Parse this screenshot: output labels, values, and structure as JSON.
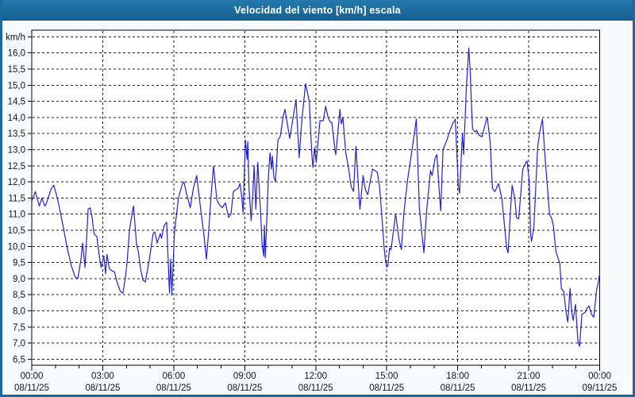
{
  "window": {
    "title": "Velocidad del viento [km/h] escala"
  },
  "colors": {
    "titlebar_top": "#2478ad",
    "titlebar_bottom": "#15608f",
    "frame": "#1a6aa0",
    "page_bg": "#f7fbfe",
    "plot_bg": "#ffffff",
    "grid": "#222222",
    "axis": "#000000",
    "line": "#2222cc",
    "label": "#10151f"
  },
  "y_axis": {
    "unit_label": "km/h",
    "min": 6.5,
    "max": 16.5,
    "step": 0.5,
    "labels": [
      "16,0",
      "15,5",
      "15,0",
      "14,5",
      "14,0",
      "13,5",
      "13,0",
      "12,5",
      "12,0",
      "11,5",
      "11,0",
      "10,5",
      "10,0",
      "9,5",
      "9,0",
      "8,5",
      "8,0",
      "7,5",
      "7,0",
      "6,5"
    ]
  },
  "x_axis": {
    "tick_hours": [
      0,
      3,
      6,
      9,
      12,
      15,
      18,
      21,
      24
    ],
    "minor_step_hours": 1,
    "labels": [
      {
        "time": "00:00",
        "date": "08/11/25"
      },
      {
        "time": "03:00",
        "date": "08/11/25"
      },
      {
        "time": "06:00",
        "date": "08/11/25"
      },
      {
        "time": "09:00",
        "date": "08/11/25"
      },
      {
        "time": "12:00",
        "date": "08/11/25"
      },
      {
        "time": "15:00",
        "date": "08/11/25"
      },
      {
        "time": "18:00",
        "date": "08/11/25"
      },
      {
        "time": "21:00",
        "date": "08/11/25"
      },
      {
        "time": "00:00",
        "date": "09/11/25"
      }
    ]
  },
  "chart_data": {
    "type": "line",
    "title": "Velocidad del viento [km/h] escala",
    "xlabel": "",
    "ylabel": "km/h",
    "x_unit": "hours since 00:00 08/11/25",
    "x_range": [
      0,
      24
    ],
    "y_range": [
      6.5,
      16.5
    ],
    "y_tick_step": 0.5,
    "grid": true,
    "legend_position": "none",
    "series": [
      {
        "name": "Velocidad del viento [km/h]",
        "color": "#2222cc",
        "points": [
          [
            0,
            11.4
          ],
          [
            0.15,
            11.7
          ],
          [
            0.32,
            11.25
          ],
          [
            0.43,
            11.5
          ],
          [
            0.55,
            11.25
          ],
          [
            0.6,
            11.3
          ],
          [
            0.83,
            11.8
          ],
          [
            0.93,
            11.9
          ],
          [
            1.08,
            11.5
          ],
          [
            1.17,
            11.2
          ],
          [
            1.33,
            10.6
          ],
          [
            1.5,
            9.95
          ],
          [
            1.67,
            9.4
          ],
          [
            1.83,
            9.05
          ],
          [
            1.95,
            9.0
          ],
          [
            2.08,
            9.6
          ],
          [
            2.15,
            10.1
          ],
          [
            2.25,
            9.35
          ],
          [
            2.33,
            10.4
          ],
          [
            2.38,
            11.15
          ],
          [
            2.47,
            11.2
          ],
          [
            2.55,
            10.9
          ],
          [
            2.63,
            10.4
          ],
          [
            2.75,
            10.3
          ],
          [
            2.87,
            9.6
          ],
          [
            2.93,
            9.35
          ],
          [
            3.05,
            9.7
          ],
          [
            3.12,
            9.15
          ],
          [
            3.18,
            9.75
          ],
          [
            3.28,
            9.3
          ],
          [
            3.38,
            9.25
          ],
          [
            3.5,
            9.2
          ],
          [
            3.62,
            8.85
          ],
          [
            3.75,
            8.6
          ],
          [
            3.85,
            8.55
          ],
          [
            3.95,
            9.0
          ],
          [
            4.03,
            9.5
          ],
          [
            4.13,
            10.5
          ],
          [
            4.27,
            11.15
          ],
          [
            4.3,
            11.25
          ],
          [
            4.43,
            10.05
          ],
          [
            4.5,
            9.85
          ],
          [
            4.6,
            9.3
          ],
          [
            4.7,
            8.95
          ],
          [
            4.8,
            8.9
          ],
          [
            4.97,
            9.6
          ],
          [
            5.13,
            10.4
          ],
          [
            5.2,
            10.45
          ],
          [
            5.3,
            10.1
          ],
          [
            5.43,
            10.4
          ],
          [
            5.48,
            10.25
          ],
          [
            5.6,
            10.65
          ],
          [
            5.7,
            10.75
          ],
          [
            5.77,
            9.5
          ],
          [
            5.82,
            8.55
          ],
          [
            5.87,
            9.6
          ],
          [
            5.92,
            8.5
          ],
          [
            6.03,
            10.45
          ],
          [
            6.2,
            11.5
          ],
          [
            6.37,
            11.95
          ],
          [
            6.43,
            12.0
          ],
          [
            6.55,
            11.6
          ],
          [
            6.7,
            11.2
          ],
          [
            6.83,
            11.8
          ],
          [
            6.97,
            12.2
          ],
          [
            7.13,
            11.2
          ],
          [
            7.27,
            10.4
          ],
          [
            7.38,
            9.6
          ],
          [
            7.48,
            10.5
          ],
          [
            7.58,
            11.6
          ],
          [
            7.68,
            12.5
          ],
          [
            7.82,
            11.45
          ],
          [
            7.92,
            11.3
          ],
          [
            8.05,
            11.2
          ],
          [
            8.18,
            11.35
          ],
          [
            8.32,
            10.9
          ],
          [
            8.42,
            11.0
          ],
          [
            8.52,
            11.7
          ],
          [
            8.62,
            11.75
          ],
          [
            8.72,
            11.8
          ],
          [
            8.8,
            11.95
          ],
          [
            8.88,
            11.5
          ],
          [
            8.93,
            11.05
          ],
          [
            9.03,
            13.3
          ],
          [
            9.1,
            12.7
          ],
          [
            9.13,
            13.25
          ],
          [
            9.18,
            11.8
          ],
          [
            9.27,
            10.8
          ],
          [
            9.33,
            11.5
          ],
          [
            9.4,
            12.5
          ],
          [
            9.47,
            11.15
          ],
          [
            9.55,
            12.6
          ],
          [
            9.67,
            11.05
          ],
          [
            9.73,
            10.1
          ],
          [
            9.8,
            9.7
          ],
          [
            9.83,
            10.65
          ],
          [
            9.87,
            9.65
          ],
          [
            9.97,
            11.5
          ],
          [
            10.0,
            12.15
          ],
          [
            10.07,
            12.9
          ],
          [
            10.13,
            12.4
          ],
          [
            10.17,
            12.8
          ],
          [
            10.23,
            12.15
          ],
          [
            10.3,
            12.0
          ],
          [
            10.4,
            13.3
          ],
          [
            10.5,
            13.4
          ],
          [
            10.63,
            14.05
          ],
          [
            10.7,
            14.25
          ],
          [
            10.8,
            13.8
          ],
          [
            10.9,
            13.35
          ],
          [
            11.07,
            14.1
          ],
          [
            11.17,
            14.55
          ],
          [
            11.3,
            12.75
          ],
          [
            11.4,
            13.8
          ],
          [
            11.57,
            15.05
          ],
          [
            11.73,
            14.5
          ],
          [
            11.83,
            12.9
          ],
          [
            11.88,
            12.45
          ],
          [
            11.95,
            13.05
          ],
          [
            12.02,
            12.6
          ],
          [
            12.18,
            13.9
          ],
          [
            12.32,
            13.9
          ],
          [
            12.42,
            14.35
          ],
          [
            12.52,
            14.0
          ],
          [
            12.62,
            13.85
          ],
          [
            12.68,
            13.85
          ],
          [
            12.82,
            12.95
          ],
          [
            12.85,
            12.85
          ],
          [
            13.02,
            14.25
          ],
          [
            13.08,
            13.8
          ],
          [
            13.15,
            14.0
          ],
          [
            13.27,
            12.9
          ],
          [
            13.37,
            12.5
          ],
          [
            13.5,
            11.85
          ],
          [
            13.6,
            11.7
          ],
          [
            13.7,
            13.1
          ],
          [
            13.83,
            11.55
          ],
          [
            13.87,
            11.15
          ],
          [
            14.0,
            12.2
          ],
          [
            14.1,
            11.75
          ],
          [
            14.2,
            11.6
          ],
          [
            14.4,
            12.4
          ],
          [
            14.5,
            12.35
          ],
          [
            14.6,
            12.3
          ],
          [
            14.7,
            11.85
          ],
          [
            14.83,
            10.6
          ],
          [
            14.88,
            10.05
          ],
          [
            14.95,
            9.55
          ],
          [
            15.0,
            9.35
          ],
          [
            15.05,
            9.4
          ],
          [
            15.12,
            9.95
          ],
          [
            15.18,
            9.9
          ],
          [
            15.35,
            10.85
          ],
          [
            15.38,
            11.0
          ],
          [
            15.52,
            10.2
          ],
          [
            15.62,
            9.9
          ],
          [
            15.72,
            11.0
          ],
          [
            15.88,
            12.05
          ],
          [
            16.02,
            12.75
          ],
          [
            16.13,
            13.3
          ],
          [
            16.25,
            13.95
          ],
          [
            16.38,
            11.2
          ],
          [
            16.52,
            10.15
          ],
          [
            16.57,
            9.8
          ],
          [
            16.68,
            11.05
          ],
          [
            16.85,
            12.35
          ],
          [
            16.92,
            12.2
          ],
          [
            17.05,
            12.75
          ],
          [
            17.12,
            12.85
          ],
          [
            17.22,
            11.7
          ],
          [
            17.28,
            11.1
          ],
          [
            17.38,
            13.0
          ],
          [
            17.52,
            13.25
          ],
          [
            17.68,
            13.6
          ],
          [
            17.78,
            13.8
          ],
          [
            17.9,
            13.95
          ],
          [
            18.03,
            11.85
          ],
          [
            18.08,
            11.65
          ],
          [
            18.2,
            13.5
          ],
          [
            18.25,
            12.85
          ],
          [
            18.37,
            15.0
          ],
          [
            18.42,
            15.55
          ],
          [
            18.47,
            16.15
          ],
          [
            18.53,
            15.45
          ],
          [
            18.58,
            14.4
          ],
          [
            18.63,
            13.65
          ],
          [
            18.73,
            13.55
          ],
          [
            18.8,
            13.6
          ],
          [
            18.9,
            13.45
          ],
          [
            19.03,
            13.4
          ],
          [
            19.2,
            13.9
          ],
          [
            19.25,
            14.0
          ],
          [
            19.37,
            13.25
          ],
          [
            19.47,
            11.8
          ],
          [
            19.57,
            11.7
          ],
          [
            19.73,
            11.95
          ],
          [
            19.87,
            11.45
          ],
          [
            19.97,
            10.7
          ],
          [
            20.07,
            9.95
          ],
          [
            20.13,
            9.8
          ],
          [
            20.23,
            11.1
          ],
          [
            20.3,
            11.9
          ],
          [
            20.42,
            11.45
          ],
          [
            20.48,
            10.9
          ],
          [
            20.58,
            10.85
          ],
          [
            20.75,
            12.4
          ],
          [
            20.88,
            12.6
          ],
          [
            20.93,
            12.65
          ],
          [
            21.02,
            12.05
          ],
          [
            21.08,
            10.4
          ],
          [
            21.12,
            10.15
          ],
          [
            21.22,
            10.6
          ],
          [
            21.38,
            13.1
          ],
          [
            21.48,
            13.6
          ],
          [
            21.58,
            13.95
          ],
          [
            21.72,
            12.5
          ],
          [
            21.77,
            12.05
          ],
          [
            21.88,
            11.0
          ],
          [
            21.98,
            10.85
          ],
          [
            22.05,
            10.6
          ],
          [
            22.15,
            9.85
          ],
          [
            22.32,
            9.45
          ],
          [
            22.38,
            8.7
          ],
          [
            22.48,
            8.6
          ],
          [
            22.58,
            7.95
          ],
          [
            22.65,
            7.65
          ],
          [
            22.75,
            8.7
          ],
          [
            22.82,
            7.95
          ],
          [
            22.88,
            7.7
          ],
          [
            22.98,
            8.2
          ],
          [
            23.08,
            7.05
          ],
          [
            23.15,
            6.9
          ],
          [
            23.25,
            7.9
          ],
          [
            23.38,
            7.95
          ],
          [
            23.48,
            8.1
          ],
          [
            23.55,
            8.15
          ],
          [
            23.65,
            7.9
          ],
          [
            23.75,
            7.8
          ],
          [
            23.88,
            8.7
          ],
          [
            23.92,
            8.8
          ],
          [
            24.0,
            9.15
          ]
        ]
      }
    ]
  }
}
